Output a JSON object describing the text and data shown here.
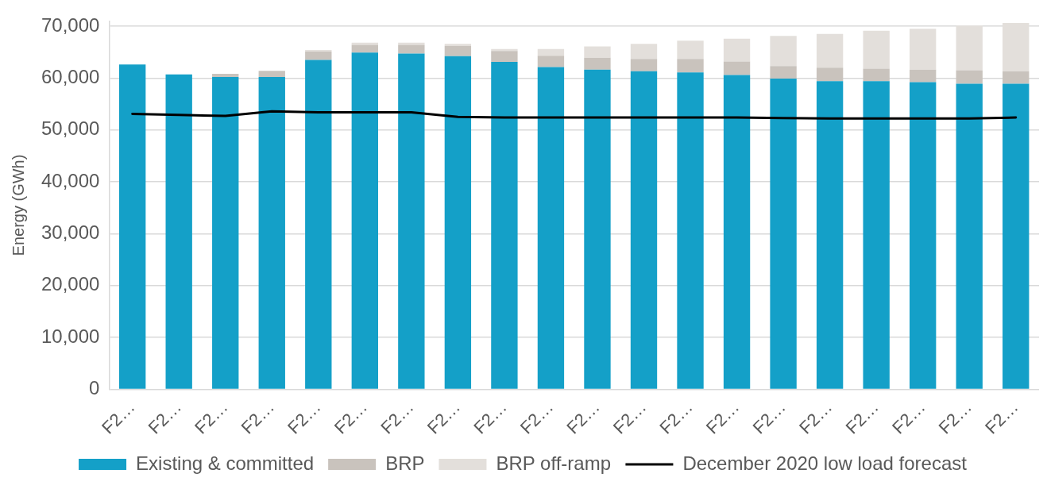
{
  "chart_data": {
    "type": "bar",
    "ylabel": "Energy (GWh)",
    "categories": [
      "F2…",
      "F2…",
      "F2…",
      "F2…",
      "F2…",
      "F2…",
      "F2…",
      "F2…",
      "F2…",
      "F2…",
      "F2…",
      "F2…",
      "F2…",
      "F2…",
      "F2…",
      "F2…",
      "F2…",
      "F2…",
      "F2…",
      "F2…"
    ],
    "series": [
      {
        "name": "Existing & committed",
        "color": "#14a0c8",
        "values": [
          62600,
          60700,
          60200,
          60200,
          63500,
          64900,
          64700,
          64200,
          63100,
          62100,
          61600,
          61300,
          61100,
          60600,
          59900,
          59400,
          59400,
          59200,
          58900,
          58900
        ]
      },
      {
        "name": "BRP",
        "color": "#c9c3bd",
        "values": [
          null,
          null,
          600,
          1200,
          1600,
          1500,
          1700,
          2000,
          2100,
          2200,
          2300,
          2400,
          2600,
          2600,
          2400,
          2600,
          2400,
          2400,
          2600,
          2400
        ]
      },
      {
        "name": "BRP off-ramp",
        "color": "#e3dfdb",
        "values": [
          null,
          null,
          null,
          null,
          300,
          400,
          400,
          400,
          400,
          1300,
          2200,
          2900,
          3500,
          4400,
          5800,
          6500,
          7300,
          7900,
          8600,
          9300
        ]
      },
      {
        "name": "December 2020 low load forecast",
        "type": "line",
        "color": "#000000",
        "values": [
          53100,
          52900,
          52700,
          53600,
          53400,
          53400,
          53400,
          52500,
          52400,
          52400,
          52400,
          52400,
          52400,
          52400,
          52300,
          52200,
          52200,
          52200,
          52200,
          52400
        ]
      }
    ],
    "stacked": true,
    "ylim": [
      0,
      71000
    ],
    "yticks": [
      {
        "value": 0,
        "label": "0"
      },
      {
        "value": 10000,
        "label": "10,000"
      },
      {
        "value": 20000,
        "label": "20,000"
      },
      {
        "value": 30000,
        "label": "30,000"
      },
      {
        "value": 40000,
        "label": "40,000"
      },
      {
        "value": 50000,
        "label": "50,000"
      },
      {
        "value": 60000,
        "label": "60,000"
      },
      {
        "value": 70000,
        "label": "70,000"
      }
    ],
    "grid": "y",
    "legend": "bottom"
  }
}
